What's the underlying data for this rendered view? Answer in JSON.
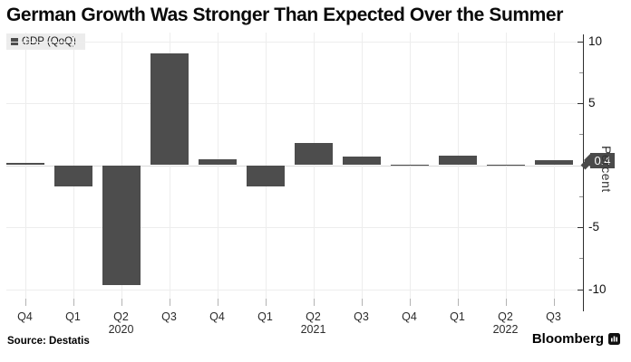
{
  "title": "German Growth Was Stronger Than Expected Over the Summer",
  "legend": {
    "label": "GDP (QoQ)",
    "marker": "square-swatch"
  },
  "chart_data": {
    "type": "bar",
    "series_name": "GDP (QoQ)",
    "categories": [
      "Q4",
      "Q1",
      "Q2",
      "Q3",
      "Q4",
      "Q1",
      "Q2",
      "Q3",
      "Q4",
      "Q1",
      "Q2",
      "Q3"
    ],
    "year_labels": [
      {
        "index": 2,
        "label": "2020"
      },
      {
        "index": 6,
        "label": "2021"
      },
      {
        "index": 10,
        "label": "2022"
      }
    ],
    "values": [
      0.2,
      -1.7,
      -9.7,
      9.0,
      0.5,
      -1.7,
      1.8,
      0.7,
      0.0,
      0.8,
      0.1,
      0.4
    ],
    "bar_color": "#4d4d4d",
    "grid": true,
    "yaxis": {
      "title": "Percent",
      "side": "right",
      "ticks": [
        10,
        5,
        -5,
        -10
      ],
      "minor_ticks": [
        7.5,
        2.5,
        -2.5,
        -7.5
      ],
      "gridlines": [
        10,
        5,
        0,
        -5,
        -10
      ],
      "ylim": [
        -11.2,
        10.7
      ]
    },
    "last_value_badge": {
      "label": "0.4",
      "bg": "#4a4a4a",
      "text_color": "#ffffff"
    }
  },
  "footer": {
    "source": "Source: Destatis",
    "brand": "Bloomberg"
  }
}
